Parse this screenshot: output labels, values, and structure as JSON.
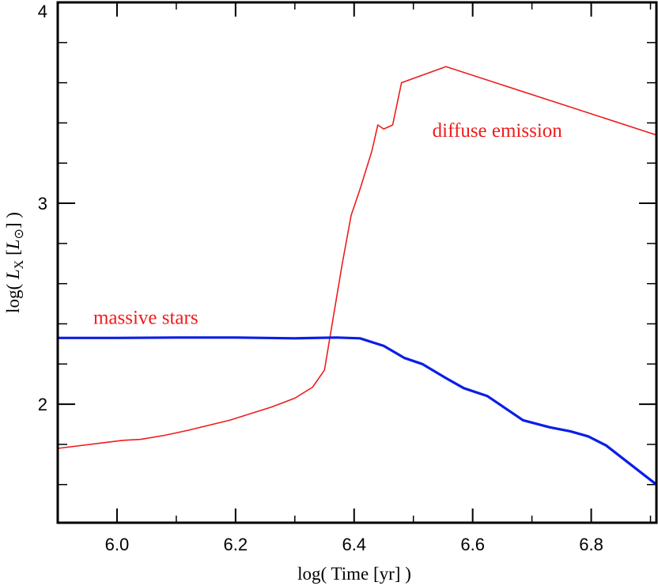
{
  "chart_data": {
    "type": "line",
    "title": "",
    "xlabel": "log( Time [yr] )",
    "ylabel_parts": {
      "prefix": "log( ",
      "var": "L",
      "sub": "X",
      "mid": " [",
      "unit": "L",
      "unitsub": "⊙",
      "suffix": "] )"
    },
    "xlim": [
      5.9,
      6.91
    ],
    "ylim": [
      1.41,
      4.0
    ],
    "x_ticks": [
      {
        "value": 6.0,
        "label": "6.0"
      },
      {
        "value": 6.2,
        "label": "6.2"
      },
      {
        "value": 6.4,
        "label": "6.4"
      },
      {
        "value": 6.6,
        "label": "6.6"
      },
      {
        "value": 6.8,
        "label": "6.8"
      }
    ],
    "x_minor_step": 0.1,
    "y_ticks": [
      {
        "value": 2,
        "label": "2"
      },
      {
        "value": 3,
        "label": "3"
      },
      {
        "value": 4,
        "label": "4"
      }
    ],
    "y_minor_step": 0.2,
    "series": [
      {
        "name": "diffuse emission",
        "color": "#ee1c1c",
        "width": 1.6,
        "points": [
          [
            5.9,
            1.78
          ],
          [
            6.01,
            1.82
          ],
          [
            6.04,
            1.825
          ],
          [
            6.08,
            1.845
          ],
          [
            6.12,
            1.87
          ],
          [
            6.19,
            1.92
          ],
          [
            6.26,
            1.985
          ],
          [
            6.3,
            2.03
          ],
          [
            6.33,
            2.085
          ],
          [
            6.35,
            2.17
          ],
          [
            6.363,
            2.4
          ],
          [
            6.38,
            2.7
          ],
          [
            6.395,
            2.94
          ],
          [
            6.41,
            3.07
          ],
          [
            6.43,
            3.26
          ],
          [
            6.44,
            3.39
          ],
          [
            6.45,
            3.37
          ],
          [
            6.465,
            3.39
          ],
          [
            6.48,
            3.6
          ],
          [
            6.555,
            3.68
          ],
          [
            6.91,
            3.34
          ]
        ]
      },
      {
        "name": "massive stars",
        "color": "#0a1ee6",
        "width": 3.2,
        "points": [
          [
            5.9,
            2.33
          ],
          [
            6.0,
            2.33
          ],
          [
            6.1,
            2.332
          ],
          [
            6.2,
            2.332
          ],
          [
            6.3,
            2.328
          ],
          [
            6.37,
            2.332
          ],
          [
            6.41,
            2.328
          ],
          [
            6.45,
            2.29
          ],
          [
            6.485,
            2.23
          ],
          [
            6.515,
            2.2
          ],
          [
            6.555,
            2.13
          ],
          [
            6.585,
            2.08
          ],
          [
            6.625,
            2.04
          ],
          [
            6.655,
            1.98
          ],
          [
            6.685,
            1.92
          ],
          [
            6.73,
            1.885
          ],
          [
            6.765,
            1.865
          ],
          [
            6.795,
            1.84
          ],
          [
            6.825,
            1.795
          ],
          [
            6.91,
            1.6
          ]
        ]
      }
    ],
    "annotations": [
      {
        "text": "diffuse emission",
        "x": 6.532,
        "y": 3.33,
        "color": "#ee1c1c"
      },
      {
        "text": "massive stars",
        "x": 5.96,
        "y": 2.4,
        "color": "#ee1c1c"
      }
    ]
  }
}
